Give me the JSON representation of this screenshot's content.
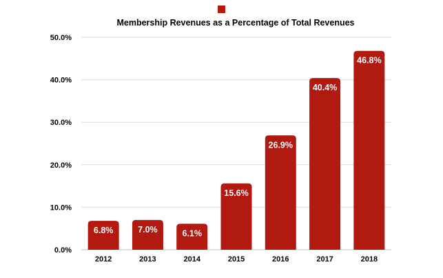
{
  "chart_data": {
    "type": "bar",
    "title": "Membership Revenues as a Percentage of Total Revenues",
    "categories": [
      "2012",
      "2013",
      "2014",
      "2015",
      "2016",
      "2017",
      "2018"
    ],
    "series": [
      {
        "values": [
          6.8,
          7.0,
          6.1,
          15.6,
          26.9,
          40.4,
          46.8
        ],
        "color": "#b01a10"
      }
    ],
    "data_labels": [
      "6.8%",
      "7.0%",
      "6.1%",
      "15.6%",
      "26.9%",
      "40.4%",
      "46.8%"
    ],
    "y_ticks": [
      0,
      10,
      20,
      30,
      40,
      50
    ],
    "y_tick_labels": [
      "0.0%",
      "10.0%",
      "20.0%",
      "30.0%",
      "40.0%",
      "50.0%"
    ],
    "ylim": [
      0,
      50
    ],
    "grid": true,
    "legend": "top-center",
    "colors": {
      "bar": "#b01a10",
      "grid": "#d9d9d9",
      "axis": "#bfbfbf"
    }
  }
}
